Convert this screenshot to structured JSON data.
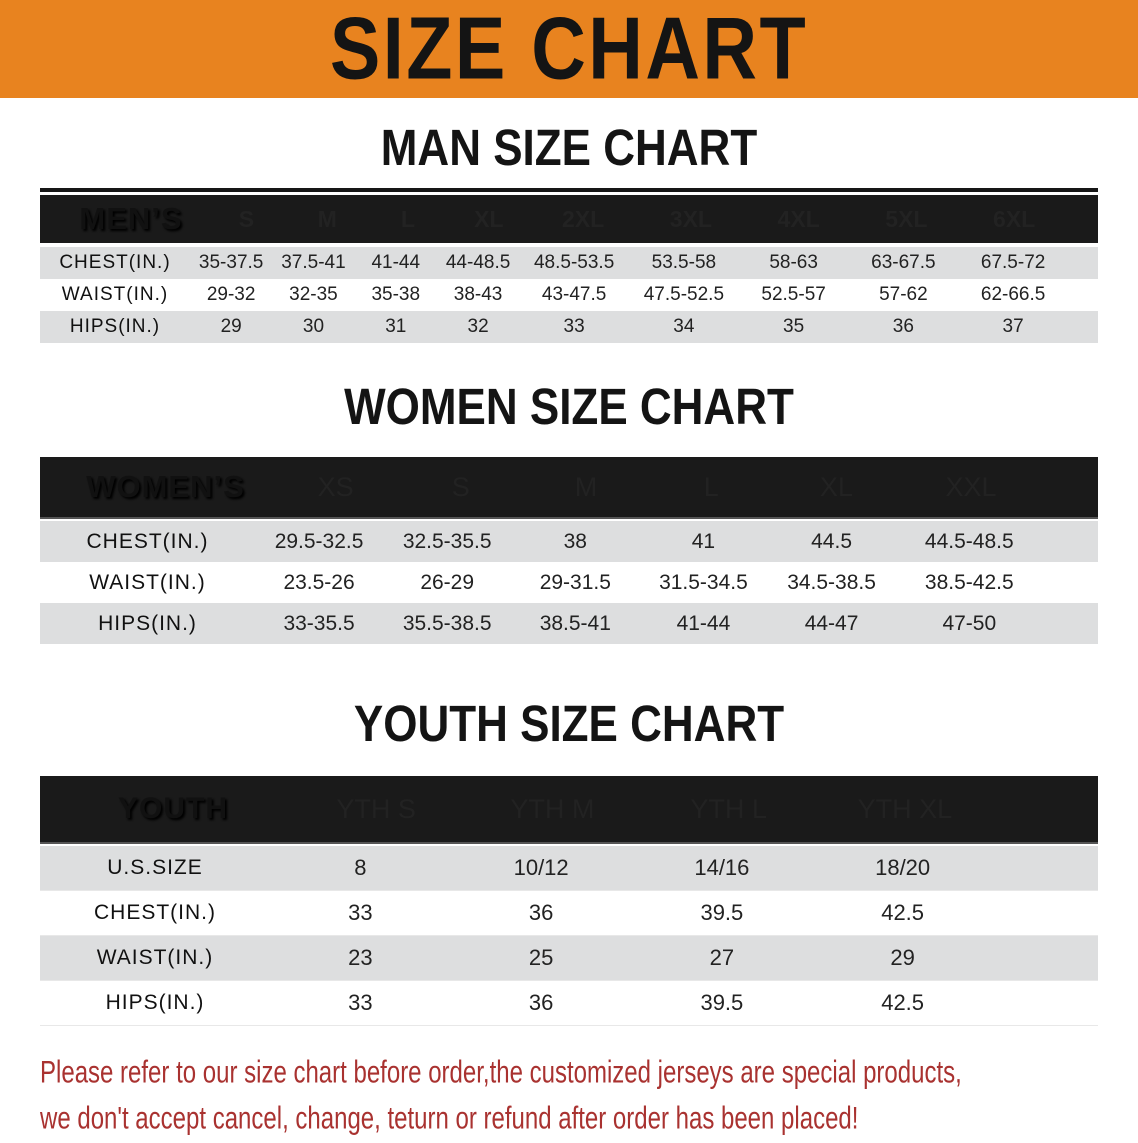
{
  "banner": {
    "title": "SIZE CHART",
    "bg_color": "#E8831F"
  },
  "colors": {
    "banner_bg": "#E8831F",
    "header_bar": "#1A1A1A",
    "row_alt": "#DDDEDF",
    "footer_text": "#A93230"
  },
  "men": {
    "title": "MAN SIZE CHART",
    "header_label": "MEN’S",
    "columns": [
      "S",
      "M",
      "L",
      "XL",
      "2XL",
      "3XL",
      "4XL",
      "5XL",
      "6XL"
    ],
    "rows": [
      {
        "label": "CHEST(IN.)",
        "values": [
          "35-37.5",
          "37.5-41",
          "41-44",
          "44-48.5",
          "48.5-53.5",
          "53.5-58",
          "58-63",
          "63-67.5",
          "67.5-72"
        ]
      },
      {
        "label": "WAIST(IN.)",
        "values": [
          "29-32",
          "32-35",
          "35-38",
          "38-43",
          "43-47.5",
          "47.5-52.5",
          "52.5-57",
          "57-62",
          "62-66.5"
        ]
      },
      {
        "label": "HIPS(IN.)",
        "values": [
          "29",
          "30",
          "31",
          "32",
          "33",
          "34",
          "35",
          "36",
          "37"
        ]
      }
    ]
  },
  "women": {
    "title": "WOMEN SIZE CHART",
    "header_label": "WOMEN’S",
    "columns": [
      "XS",
      "S",
      "M",
      "L",
      "XL",
      "XXL"
    ],
    "rows": [
      {
        "label": "CHEST(IN.)",
        "values": [
          "29.5-32.5",
          "32.5-35.5",
          "38",
          "41",
          "44.5",
          "44.5-48.5"
        ]
      },
      {
        "label": "WAIST(IN.)",
        "values": [
          "23.5-26",
          "26-29",
          "29-31.5",
          "31.5-34.5",
          "34.5-38.5",
          "38.5-42.5"
        ]
      },
      {
        "label": "HIPS(IN.)",
        "values": [
          "33-35.5",
          "35.5-38.5",
          "38.5-41",
          "41-44",
          "44-47",
          "47-50"
        ]
      }
    ]
  },
  "youth": {
    "title": "YOUTH SIZE CHART",
    "header_label": "YOUTH",
    "columns": [
      "YTH S",
      "YTH M",
      "YTH L",
      "YTH XL"
    ],
    "rows": [
      {
        "label": "U.S.SIZE",
        "values": [
          "8",
          "10/12",
          "14/16",
          "18/20"
        ]
      },
      {
        "label": "CHEST(IN.)",
        "values": [
          "33",
          "36",
          "39.5",
          "42.5"
        ]
      },
      {
        "label": "WAIST(IN.)",
        "values": [
          "23",
          "25",
          "27",
          "29"
        ]
      },
      {
        "label": "HIPS(IN.)",
        "values": [
          "33",
          "36",
          "39.5",
          "42.5"
        ]
      }
    ]
  },
  "footer": {
    "line1": "Please refer to our size chart before order,the customized jerseys are special products,",
    "line2": "we don't accept cancel, change, teturn or refund after order has been placed!"
  }
}
